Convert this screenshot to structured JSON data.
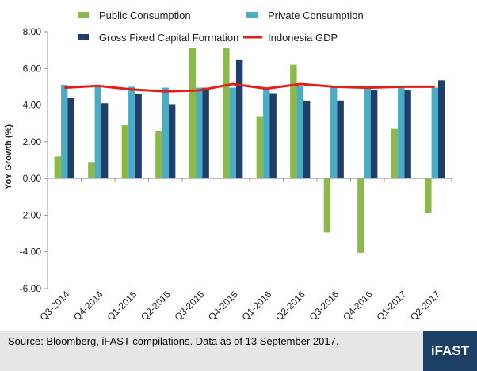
{
  "chart_data": {
    "type": "bar",
    "ylabel": "YoY Growth (%)",
    "ylim": [
      -6,
      8
    ],
    "yticks": [
      "8.00",
      "6.00",
      "4.00",
      "2.00",
      "0.00",
      "-2.00",
      "-4.00",
      "-6.00"
    ],
    "categories": [
      "Q3-2014",
      "Q4-2014",
      "Q1-2015",
      "Q2-2015",
      "Q3-2015",
      "Q4-2015",
      "Q1-2016",
      "Q2-2016",
      "Q3-2016",
      "Q4-2016",
      "Q1-2017",
      "Q2-2017"
    ],
    "series": [
      {
        "name": "Public Consumption",
        "type": "bar",
        "color": "#8db84a",
        "values": [
          1.2,
          0.9,
          2.9,
          2.6,
          7.1,
          7.1,
          3.4,
          6.2,
          -2.95,
          -4.05,
          2.7,
          -1.9
        ]
      },
      {
        "name": "Private Consumption",
        "type": "bar",
        "color": "#4bacc6",
        "values": [
          5.1,
          5.05,
          5.0,
          4.95,
          4.95,
          4.95,
          4.95,
          5.05,
          5.0,
          4.95,
          4.95,
          4.95
        ]
      },
      {
        "name": "Gross Fixed Capital Formation",
        "type": "bar",
        "color": "#1f3f6a",
        "values": [
          4.4,
          4.1,
          4.6,
          4.05,
          4.95,
          6.45,
          4.65,
          4.2,
          4.25,
          4.8,
          4.8,
          5.35
        ]
      },
      {
        "name": "Indonesia GDP",
        "type": "line",
        "color": "#e0201a",
        "values": [
          4.95,
          5.05,
          4.85,
          4.75,
          4.8,
          5.15,
          4.9,
          5.15,
          5.0,
          4.95,
          5.0,
          5.0
        ]
      }
    ],
    "legend_position": "top",
    "grid": false
  },
  "footer": {
    "source": "Source: Bloomberg, iFAST compilations. Data as of 13 September 2017.",
    "logo": "iFAST"
  }
}
